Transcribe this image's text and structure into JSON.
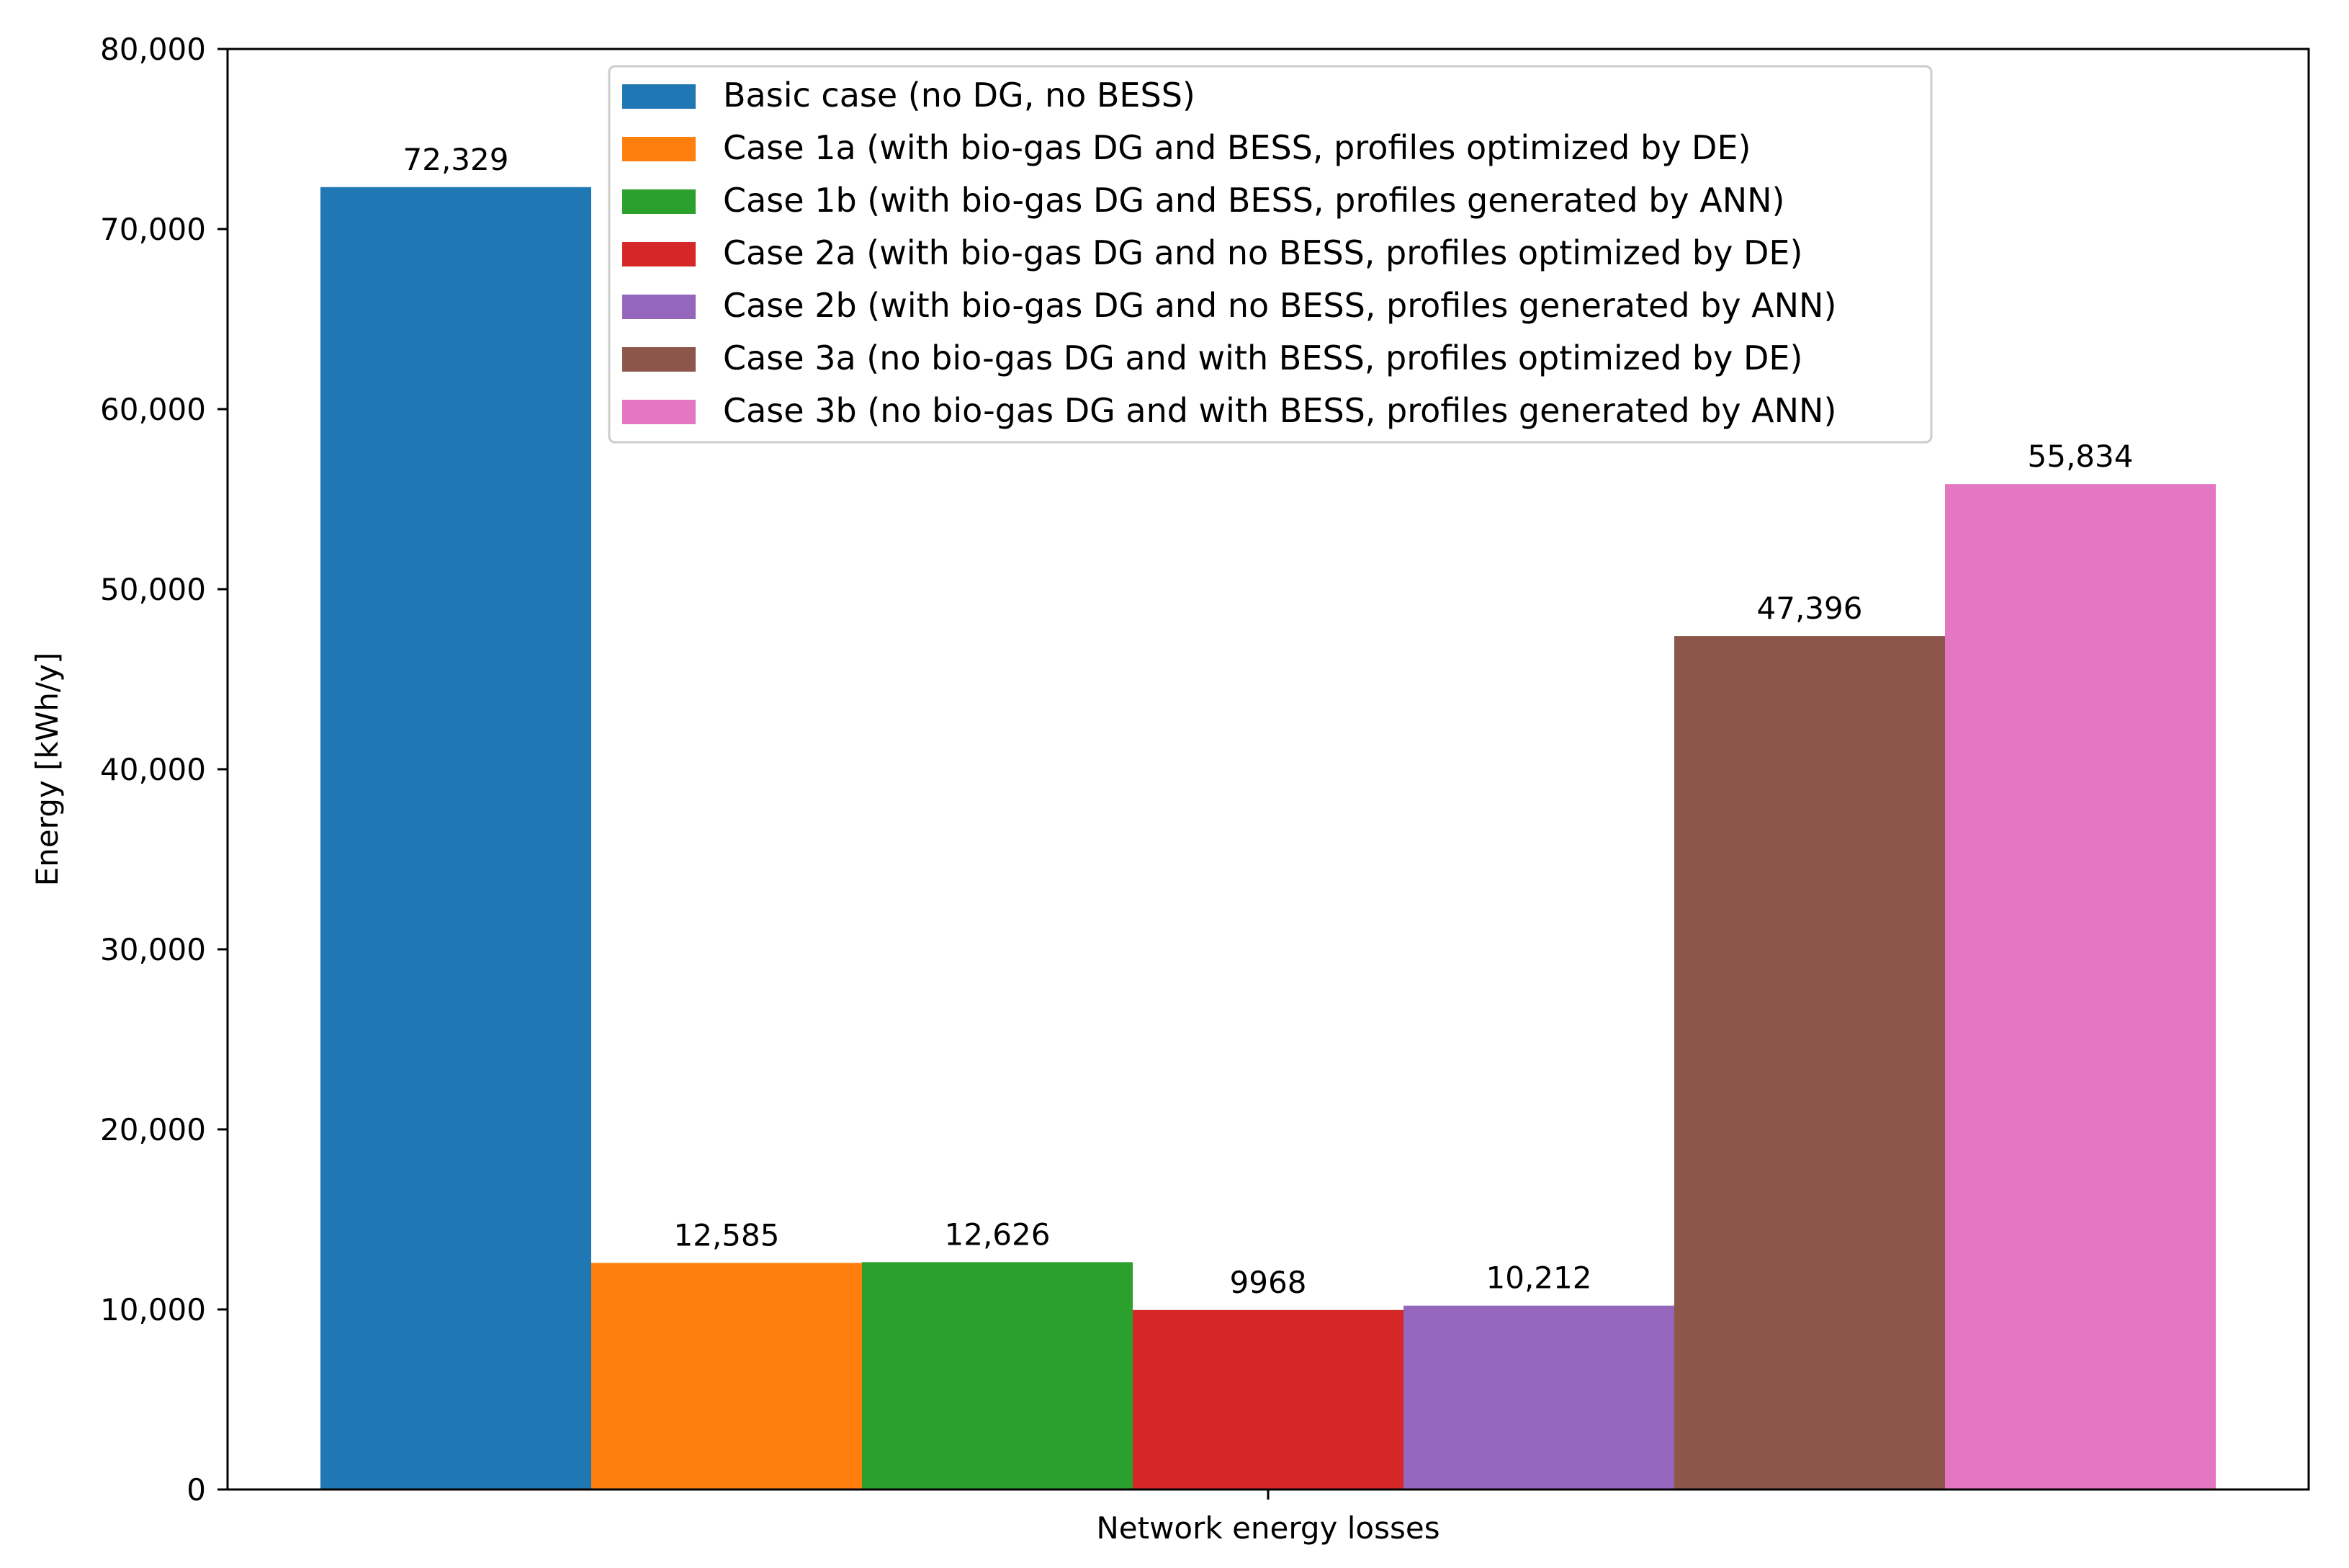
{
  "chart_data": {
    "type": "bar",
    "categories": [
      "Network energy losses"
    ],
    "xlabel": "Network energy losses",
    "ylabel": "Energy [kWh/y]",
    "ylim": [
      0,
      80000
    ],
    "yticks": [
      0,
      10000,
      20000,
      30000,
      40000,
      50000,
      60000,
      70000,
      80000
    ],
    "ytick_labels": [
      "0",
      "10,000",
      "20,000",
      "30,000",
      "40,000",
      "50,000",
      "60,000",
      "70,000",
      "80,000"
    ],
    "grid": false,
    "legend_position": "top-center",
    "series": [
      {
        "name": "Basic case (no DG, no BESS)",
        "values": [
          72329
        ],
        "label": "72,329",
        "color": "#1f77b4"
      },
      {
        "name": "Case 1a (with bio-gas DG and BESS, profiles optimized by DE)",
        "values": [
          12585
        ],
        "label": "12,585",
        "color": "#ff7f0e"
      },
      {
        "name": "Case 1b (with bio-gas DG and BESS, profiles generated by ANN)",
        "values": [
          12626
        ],
        "label": "12,626",
        "color": "#2ca02c"
      },
      {
        "name": "Case 2a (with bio-gas DG and no BESS, profiles optimized by DE)",
        "values": [
          9968
        ],
        "label": "9968",
        "color": "#d62728"
      },
      {
        "name": "Case 2b (with bio-gas DG and no BESS, profiles generated by ANN)",
        "values": [
          10212
        ],
        "label": "10,212",
        "color": "#9467bd"
      },
      {
        "name": "Case 3a (no bio-gas DG and with BESS, profiles optimized by DE)",
        "values": [
          47396
        ],
        "label": "47,396",
        "color": "#8c564b"
      },
      {
        "name": "Case 3b (no bio-gas DG and with BESS, profiles generated by ANN)",
        "values": [
          55834
        ],
        "label": "55,834",
        "color": "#e377c2"
      }
    ]
  }
}
